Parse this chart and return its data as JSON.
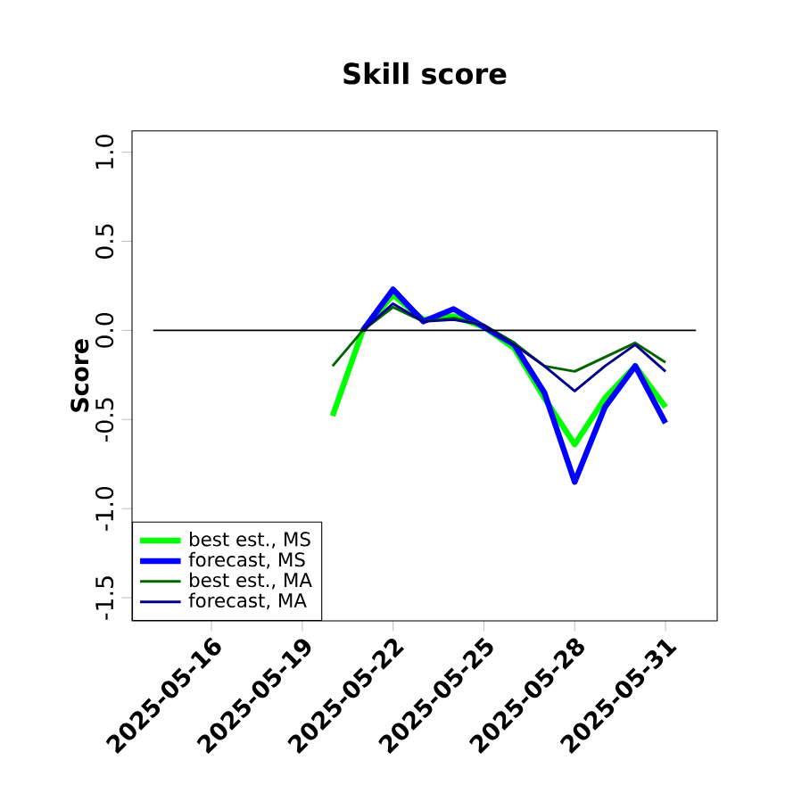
{
  "chart_data": {
    "type": "line",
    "title": "Skill score",
    "ylabel": "Score",
    "x": [
      "2025-05-20",
      "2025-05-21",
      "2025-05-22",
      "2025-05-23",
      "2025-05-24",
      "2025-05-25",
      "2025-05-26",
      "2025-05-27",
      "2025-05-28",
      "2025-05-29",
      "2025-05-30",
      "2025-05-31"
    ],
    "series": [
      {
        "name": "best est., MS",
        "color": "#00ff00",
        "values": [
          -0.48,
          0.0,
          0.2,
          0.06,
          0.08,
          0.02,
          -0.1,
          -0.38,
          -0.64,
          -0.38,
          -0.2,
          -0.43
        ]
      },
      {
        "name": "forecast, MS",
        "color": "#0000ff",
        "values": [
          null,
          0.0,
          0.23,
          0.05,
          0.12,
          0.02,
          -0.08,
          -0.35,
          -0.85,
          -0.43,
          -0.2,
          -0.52
        ]
      },
      {
        "name": "best est., MA",
        "color": "#006400",
        "values": [
          -0.2,
          0.0,
          0.13,
          0.05,
          0.07,
          0.03,
          -0.07,
          -0.2,
          -0.23,
          -0.15,
          -0.07,
          -0.18
        ]
      },
      {
        "name": "forecast, MA",
        "color": "#00008b",
        "values": [
          null,
          0.0,
          0.15,
          0.05,
          0.06,
          0.03,
          -0.08,
          -0.2,
          -0.34,
          -0.2,
          -0.08,
          -0.23
        ]
      }
    ],
    "xlim": [
      "2025-05-13T09:00",
      "2025-06-01T17:00"
    ],
    "xticks": [
      "2025-05-16",
      "2025-05-19",
      "2025-05-22",
      "2025-05-25",
      "2025-05-28",
      "2025-05-31"
    ],
    "ylim": [
      -1.63,
      1.12
    ],
    "yticks": [
      -1.5,
      {
        "value": -1,
        "label": "-1.0"
      },
      -0.5,
      {
        "value": 0,
        "label": "0.0"
      },
      0.5,
      {
        "value": 1,
        "label": "1.0"
      }
    ],
    "ref_lines": [
      {
        "axis": "y",
        "value": 0,
        "color": "#000000"
      }
    ],
    "legend": "bottom left",
    "grid": false,
    "marker": "none",
    "line_style": "solid"
  }
}
